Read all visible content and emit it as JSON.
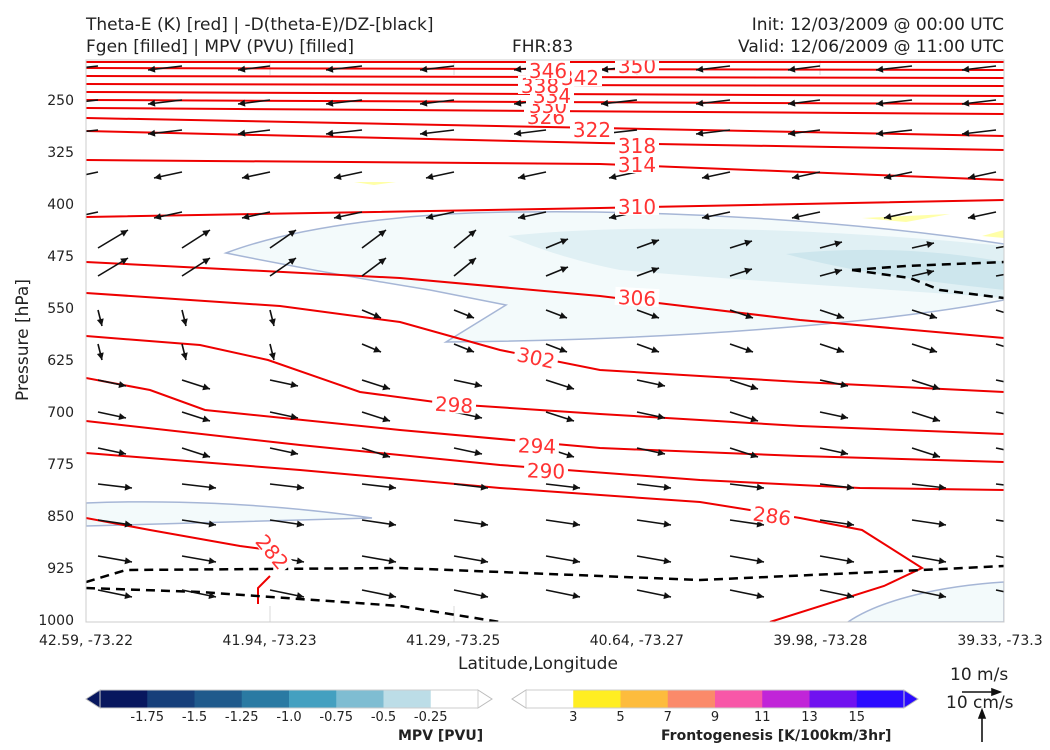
{
  "header": {
    "left_line1": "Theta-E (K) [red] | -D(theta-E)/DZ-[black]",
    "left_line2": "Fgen [filled] | MPV (PVU) [filled]",
    "center": "FHR:83",
    "right_line1": "Init: 12/03/2009 @ 00:00 UTC",
    "right_line2": "Valid: 12/06/2009 @ 11:00 UTC"
  },
  "chart_data": {
    "type": "cross-section",
    "xlabel": "Latitude,Longitude",
    "ylabel": "Pressure [hPa]",
    "x_ticks": [
      "42.59, -73.22",
      "41.94, -73.23",
      "41.29, -73.25",
      "40.64, -73.27",
      "39.98, -73.28",
      "39.33, -73.3"
    ],
    "y_ticks": [
      250,
      325,
      400,
      475,
      550,
      625,
      700,
      775,
      850,
      925,
      1000
    ],
    "ylim": [
      1000,
      190
    ],
    "y_scale": "linear, inverted",
    "theta_e_contours": [
      {
        "label": "282",
        "level": 282
      },
      {
        "label": "286",
        "level": 286
      },
      {
        "label": "290",
        "level": 290
      },
      {
        "label": "294",
        "level": 294
      },
      {
        "label": "298",
        "level": 298
      },
      {
        "label": "302",
        "level": 302
      },
      {
        "label": "306",
        "level": 306
      },
      {
        "label": "310",
        "level": 310
      },
      {
        "label": "314",
        "level": 314
      },
      {
        "label": "318",
        "level": 318
      },
      {
        "label": "322",
        "level": 322
      },
      {
        "label": "326",
        "level": 326
      },
      {
        "label": "330",
        "level": 330
      },
      {
        "label": "334",
        "level": 334
      },
      {
        "label": "338",
        "level": 338
      },
      {
        "label": "342",
        "level": 342
      },
      {
        "label": "346",
        "level": 346
      },
      {
        "label": "350",
        "level": 350
      }
    ],
    "mpv_colorbar": {
      "title": "MPV [PVU]",
      "ticks": [
        "-1.75",
        "-1.5",
        "-1.25",
        "-1.0",
        "-0.75",
        "-0.5",
        "-0.25"
      ],
      "colors": [
        "#08175e",
        "#163f7a",
        "#1f5a8c",
        "#2a7aa3",
        "#44a0c0",
        "#7fbdd2",
        "#bcdde7",
        "#ffffff"
      ]
    },
    "fgen_colorbar": {
      "title": "Frontogenesis [K/100km/3hr]",
      "ticks": [
        "3",
        "5",
        "7",
        "9",
        "11",
        "13",
        "15"
      ],
      "colors": [
        "#ffffff",
        "#ffee22",
        "#fdbc3d",
        "#fb8a6a",
        "#f857a8",
        "#c125d8",
        "#7012f0",
        "#2b0bff"
      ]
    },
    "wind_reference": {
      "horizontal": "10 m/s",
      "vertical": "10 cm/s"
    }
  }
}
